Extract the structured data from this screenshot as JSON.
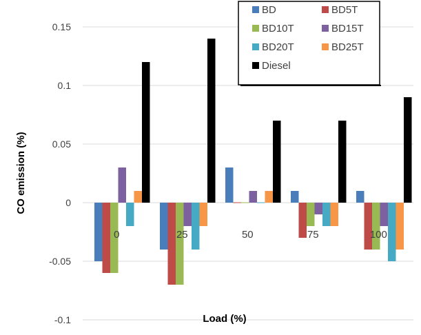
{
  "chart_data": {
    "type": "bar",
    "title": "",
    "xlabel": "Load (%)",
    "ylabel": "CO emission (%)",
    "categories": [
      "0",
      "25",
      "50",
      "75",
      "100"
    ],
    "ylim": [
      -0.1,
      0.15
    ],
    "yticks": [
      -0.1,
      -0.05,
      0,
      0.05,
      0.1,
      0.15
    ],
    "ytick_labels": [
      "-0.1",
      "-0.05",
      "0",
      "0.05",
      "0.1",
      "0.15"
    ],
    "grid": true,
    "legend_position": "top-right",
    "series": [
      {
        "name": "BD",
        "color": "#4A7EBB",
        "values": [
          -0.05,
          -0.04,
          0.03,
          0.01,
          0.01
        ]
      },
      {
        "name": "BD5T",
        "color": "#BE4B48",
        "values": [
          -0.06,
          -0.07,
          0.0,
          -0.03,
          -0.04
        ]
      },
      {
        "name": "BD10T",
        "color": "#98B954",
        "values": [
          -0.06,
          -0.07,
          0.0,
          -0.02,
          -0.04
        ]
      },
      {
        "name": "BD15T",
        "color": "#7D60A0",
        "values": [
          0.03,
          -0.02,
          0.01,
          -0.01,
          -0.02
        ]
      },
      {
        "name": "BD20T",
        "color": "#46AAC5",
        "values": [
          -0.02,
          -0.04,
          0.0,
          -0.02,
          -0.05
        ]
      },
      {
        "name": "BD25T",
        "color": "#F79646",
        "values": [
          0.01,
          -0.02,
          0.01,
          -0.02,
          -0.04
        ]
      },
      {
        "name": "Diesel",
        "color": "#000000",
        "values": [
          0.12,
          0.14,
          0.07,
          0.07,
          0.09
        ]
      }
    ]
  }
}
